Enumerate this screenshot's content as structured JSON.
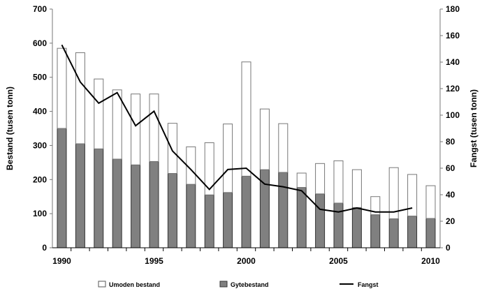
{
  "chart_data": {
    "type": "bar",
    "stacked": true,
    "categories": [
      1990,
      1991,
      1992,
      1993,
      1994,
      1995,
      1996,
      1997,
      1998,
      1999,
      2000,
      2001,
      2002,
      2003,
      2004,
      2005,
      2006,
      2007,
      2008,
      2009,
      2010
    ],
    "x_tick_labels": [
      "1990",
      "1995",
      "2000",
      "2005",
      "2010"
    ],
    "ylabel": "Bestand (tusen tonn)",
    "ylabel_right": "Fangst (tusen tonn)",
    "ylim": [
      0,
      700
    ],
    "ylim_right": [
      0,
      180
    ],
    "yticks": [
      0,
      100,
      200,
      300,
      400,
      500,
      600,
      700
    ],
    "yticks_right": [
      0,
      20,
      40,
      60,
      80,
      100,
      120,
      140,
      160,
      180
    ],
    "grid": false,
    "legend_position": "bottom",
    "series": [
      {
        "name": "Gytebestand",
        "kind": "bar",
        "axis": "left",
        "color": "#808080",
        "values": [
          350,
          305,
          290,
          260,
          243,
          253,
          218,
          186,
          155,
          162,
          210,
          229,
          221,
          177,
          158,
          131,
          118,
          97,
          85,
          93,
          86
        ]
      },
      {
        "name": "Umoden bestand",
        "kind": "bar",
        "axis": "left",
        "color": "#ffffff",
        "values": [
          235,
          267,
          205,
          203,
          208,
          198,
          147,
          110,
          153,
          201,
          335,
          178,
          143,
          42,
          89,
          124,
          111,
          53,
          150,
          122,
          96
        ]
      },
      {
        "name": "Fangst",
        "kind": "line",
        "axis": "right",
        "color": "#000000",
        "values": [
          153,
          125,
          109,
          117,
          92,
          103,
          73,
          59,
          44,
          59,
          60,
          48,
          46,
          43,
          29,
          27,
          30,
          27,
          27,
          30,
          null
        ]
      }
    ]
  }
}
